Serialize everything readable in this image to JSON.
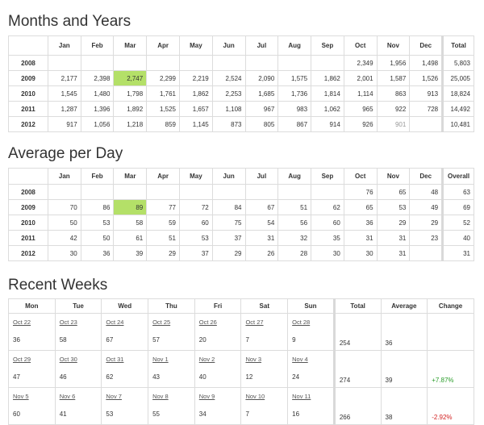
{
  "months_title": "Months and Years",
  "avg_title": "Average per Day",
  "weeks_title": "Recent Weeks",
  "month_headers": [
    "",
    "Jan",
    "Feb",
    "Mar",
    "Apr",
    "May",
    "Jun",
    "Jul",
    "Aug",
    "Sep",
    "Oct",
    "Nov",
    "Dec"
  ],
  "months_total_header": "Total",
  "avg_overall_header": "Overall",
  "months_rows": [
    {
      "year": "2008",
      "vals": [
        "",
        "",
        "",
        "",
        "",
        "",
        "",
        "",
        "",
        "2,349",
        "1,956",
        "1,498"
      ],
      "total": "5,803"
    },
    {
      "year": "2009",
      "vals": [
        "2,177",
        "2,398",
        "2,747",
        "2,299",
        "2,219",
        "2,524",
        "2,090",
        "1,575",
        "1,862",
        "2,001",
        "1,587",
        "1,526"
      ],
      "total": "25,005"
    },
    {
      "year": "2010",
      "vals": [
        "1,545",
        "1,480",
        "1,798",
        "1,761",
        "1,862",
        "2,253",
        "1,685",
        "1,736",
        "1,814",
        "1,114",
        "863",
        "913"
      ],
      "total": "18,824"
    },
    {
      "year": "2011",
      "vals": [
        "1,287",
        "1,396",
        "1,892",
        "1,525",
        "1,657",
        "1,108",
        "967",
        "983",
        "1,062",
        "965",
        "922",
        "728"
      ],
      "total": "14,492"
    },
    {
      "year": "2012",
      "vals": [
        "917",
        "1,056",
        "1,218",
        "859",
        "1,145",
        "873",
        "805",
        "867",
        "914",
        "926",
        "901",
        ""
      ],
      "total": "10,481"
    }
  ],
  "avg_rows": [
    {
      "year": "2008",
      "vals": [
        "",
        "",
        "",
        "",
        "",
        "",
        "",
        "",
        "",
        "76",
        "65",
        "48"
      ],
      "total": "63"
    },
    {
      "year": "2009",
      "vals": [
        "70",
        "86",
        "89",
        "77",
        "72",
        "84",
        "67",
        "51",
        "62",
        "65",
        "53",
        "49"
      ],
      "total": "69"
    },
    {
      "year": "2010",
      "vals": [
        "50",
        "53",
        "58",
        "59",
        "60",
        "75",
        "54",
        "56",
        "60",
        "36",
        "29",
        "29"
      ],
      "total": "52"
    },
    {
      "year": "2011",
      "vals": [
        "42",
        "50",
        "61",
        "51",
        "53",
        "37",
        "31",
        "32",
        "35",
        "31",
        "31",
        "23"
      ],
      "total": "40"
    },
    {
      "year": "2012",
      "vals": [
        "30",
        "36",
        "39",
        "29",
        "37",
        "29",
        "26",
        "28",
        "30",
        "30",
        "31",
        ""
      ],
      "total": "31"
    }
  ],
  "weeks_headers": [
    "Mon",
    "Tue",
    "Wed",
    "Thu",
    "Fri",
    "Sat",
    "Sun",
    "Total",
    "Average",
    "Change"
  ],
  "weeks": [
    {
      "dates": [
        "Oct 22",
        "Oct 23",
        "Oct 24",
        "Oct 25",
        "Oct 26",
        "Oct 27",
        "Oct 28"
      ],
      "counts": [
        "36",
        "58",
        "67",
        "57",
        "20",
        "7",
        "9"
      ],
      "total": "254",
      "average": "36",
      "change": ""
    },
    {
      "dates": [
        "Oct 29",
        "Oct 30",
        "Oct 31",
        "Nov 1",
        "Nov 2",
        "Nov 3",
        "Nov 4"
      ],
      "counts": [
        "47",
        "46",
        "62",
        "43",
        "40",
        "12",
        "24"
      ],
      "total": "274",
      "average": "39",
      "change": "+7.87%"
    },
    {
      "dates": [
        "Nov 5",
        "Nov 6",
        "Nov 7",
        "Nov 8",
        "Nov 9",
        "Nov 10",
        "Nov 11"
      ],
      "counts": [
        "60",
        "41",
        "53",
        "55",
        "34",
        "7",
        "16"
      ],
      "total": "266",
      "average": "38",
      "change": "-2.92%"
    }
  ],
  "colors": {
    "highlight": "#b4e068",
    "positive": "#2a9d2a",
    "negative": "#d22020"
  }
}
